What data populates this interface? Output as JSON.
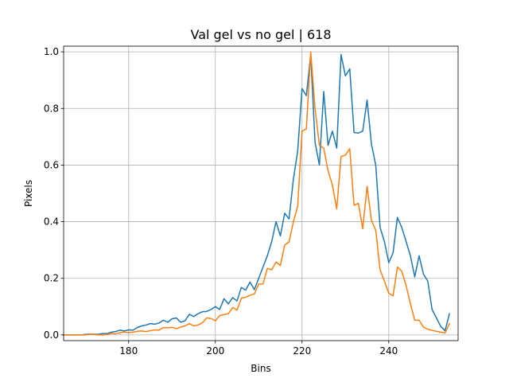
{
  "chart_data": {
    "type": "line",
    "title": "Val gel vs no gel | 618",
    "xlabel": "Bins",
    "ylabel": "Pixels",
    "xlim": [
      165,
      256
    ],
    "ylim": [
      -0.02,
      1.02
    ],
    "grid": true,
    "x_ticks": [
      180,
      200,
      220,
      240
    ],
    "y_ticks": [
      0.0,
      0.2,
      0.4,
      0.6,
      0.8,
      1.0
    ],
    "x_tick_labels": [
      "180",
      "200",
      "220",
      "240"
    ],
    "y_tick_labels": [
      "0.0",
      "0.2",
      "0.4",
      "0.6",
      "0.8",
      "1.0"
    ],
    "x": [
      165,
      166,
      167,
      168,
      169,
      170,
      171,
      172,
      173,
      174,
      175,
      176,
      177,
      178,
      179,
      180,
      181,
      182,
      183,
      184,
      185,
      186,
      187,
      188,
      189,
      190,
      191,
      192,
      193,
      194,
      195,
      196,
      197,
      198,
      199,
      200,
      201,
      202,
      203,
      204,
      205,
      206,
      207,
      208,
      209,
      210,
      211,
      212,
      213,
      214,
      215,
      216,
      217,
      218,
      219,
      220,
      221,
      222,
      223,
      224,
      225,
      226,
      227,
      228,
      229,
      230,
      231,
      232,
      233,
      234,
      235,
      236,
      237,
      238,
      239,
      240,
      241,
      242,
      243,
      244,
      245,
      246,
      247,
      248,
      249,
      250,
      251,
      252,
      253,
      254
    ],
    "series": [
      {
        "color": "#1f77b4",
        "values": [
          0.0,
          0.0,
          0.0,
          0.0,
          0.0,
          0.002,
          0.003,
          0.003,
          0.002,
          0.005,
          0.005,
          0.01,
          0.012,
          0.017,
          0.014,
          0.018,
          0.017,
          0.026,
          0.032,
          0.035,
          0.04,
          0.038,
          0.042,
          0.052,
          0.045,
          0.057,
          0.06,
          0.045,
          0.05,
          0.073,
          0.065,
          0.075,
          0.082,
          0.083,
          0.09,
          0.1,
          0.09,
          0.128,
          0.11,
          0.132,
          0.12,
          0.168,
          0.158,
          0.187,
          0.16,
          0.2,
          0.24,
          0.28,
          0.33,
          0.4,
          0.35,
          0.43,
          0.41,
          0.55,
          0.65,
          0.87,
          0.845,
          0.99,
          0.68,
          0.6,
          0.86,
          0.67,
          0.72,
          0.66,
          0.99,
          0.915,
          0.94,
          0.715,
          0.713,
          0.72,
          0.83,
          0.675,
          0.6,
          0.38,
          0.33,
          0.255,
          0.29,
          0.415,
          0.38,
          0.33,
          0.28,
          0.205,
          0.28,
          0.215,
          0.19,
          0.09,
          0.06,
          0.03,
          0.015,
          0.075
        ]
      },
      {
        "color": "#ff7f0e",
        "values": [
          0.0,
          0.0,
          0.0,
          0.0,
          0.0,
          0.0,
          0.003,
          0.002,
          0.0,
          0.0,
          0.002,
          0.005,
          0.004,
          0.008,
          0.01,
          0.008,
          0.01,
          0.013,
          0.014,
          0.012,
          0.015,
          0.018,
          0.017,
          0.026,
          0.025,
          0.027,
          0.022,
          0.028,
          0.032,
          0.04,
          0.032,
          0.035,
          0.043,
          0.06,
          0.058,
          0.05,
          0.068,
          0.072,
          0.075,
          0.097,
          0.088,
          0.13,
          0.133,
          0.14,
          0.145,
          0.18,
          0.18,
          0.235,
          0.23,
          0.258,
          0.245,
          0.318,
          0.328,
          0.4,
          0.455,
          0.72,
          0.728,
          1.0,
          0.8,
          0.67,
          0.66,
          0.58,
          0.53,
          0.445,
          0.63,
          0.635,
          0.658,
          0.458,
          0.465,
          0.375,
          0.525,
          0.405,
          0.37,
          0.23,
          0.19,
          0.148,
          0.138,
          0.24,
          0.225,
          0.175,
          0.11,
          0.052,
          0.052,
          0.028,
          0.02,
          0.016,
          0.013,
          0.01,
          0.007,
          0.04
        ]
      }
    ]
  }
}
